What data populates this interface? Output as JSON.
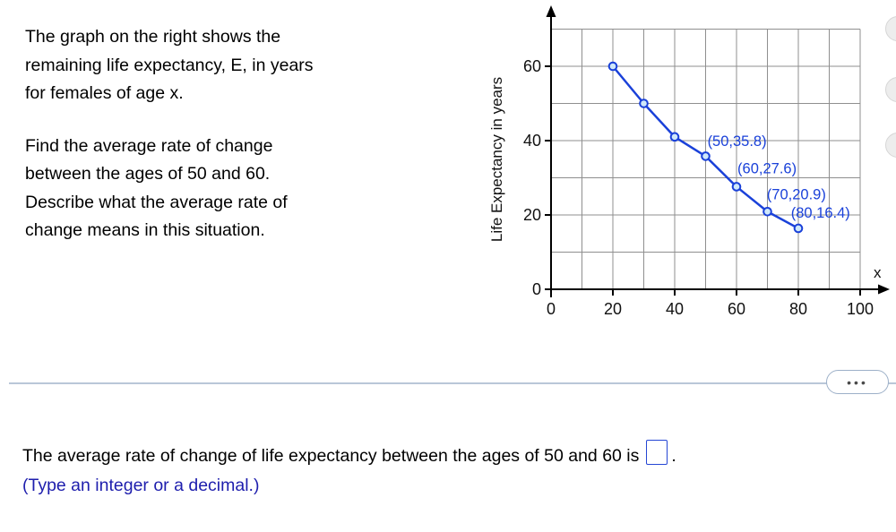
{
  "problem": {
    "para1_lines": [
      "The graph on the right shows the",
      "remaining life expectancy, E, in years",
      "for females of age x."
    ],
    "para2_lines": [
      "Find the average rate of change",
      "between the ages of 50 and 60.",
      "Describe what the average rate of",
      "change means in this situation."
    ]
  },
  "chart_data": {
    "type": "line",
    "title": "",
    "xlabel": "x",
    "ylabel": "Life Expectancy in years",
    "x": [
      20,
      30,
      40,
      50,
      60,
      70,
      80
    ],
    "y": [
      60,
      50,
      41,
      35.8,
      27.6,
      20.9,
      16.4
    ],
    "x_ticks": [
      0,
      20,
      40,
      60,
      80,
      100
    ],
    "y_ticks": [
      0,
      20,
      40,
      60
    ],
    "xlim": [
      0,
      105
    ],
    "ylim": [
      0,
      72
    ],
    "grid": true,
    "grid_step": 10,
    "grid_x_max": 100,
    "grid_y_max": 70,
    "legend": "none",
    "line_color": "#1a41d9",
    "marker_fill": "#cfe8fa",
    "grid_color": "#8f8f8f",
    "axis_color": "#000000",
    "annotations": [
      {
        "text": "(50,35.8)",
        "x": 50.6,
        "y": 38.6
      },
      {
        "text": "(60,27.6)",
        "x": 60.3,
        "y": 31.2
      },
      {
        "text": "(70,20.9)",
        "x": 69.8,
        "y": 24.2
      },
      {
        "text": "(80,16.4)",
        "x": 77.6,
        "y": 19.3
      }
    ]
  },
  "divider": {
    "ellipsis_label": "•••"
  },
  "answer": {
    "prompt": "The average rate of change of life expectancy between the ages of 50 and 60 is",
    "input_value": "",
    "suffix": ".",
    "hint": "(Type an integer or a decimal.)",
    "hint_color": "#1e1ead"
  }
}
